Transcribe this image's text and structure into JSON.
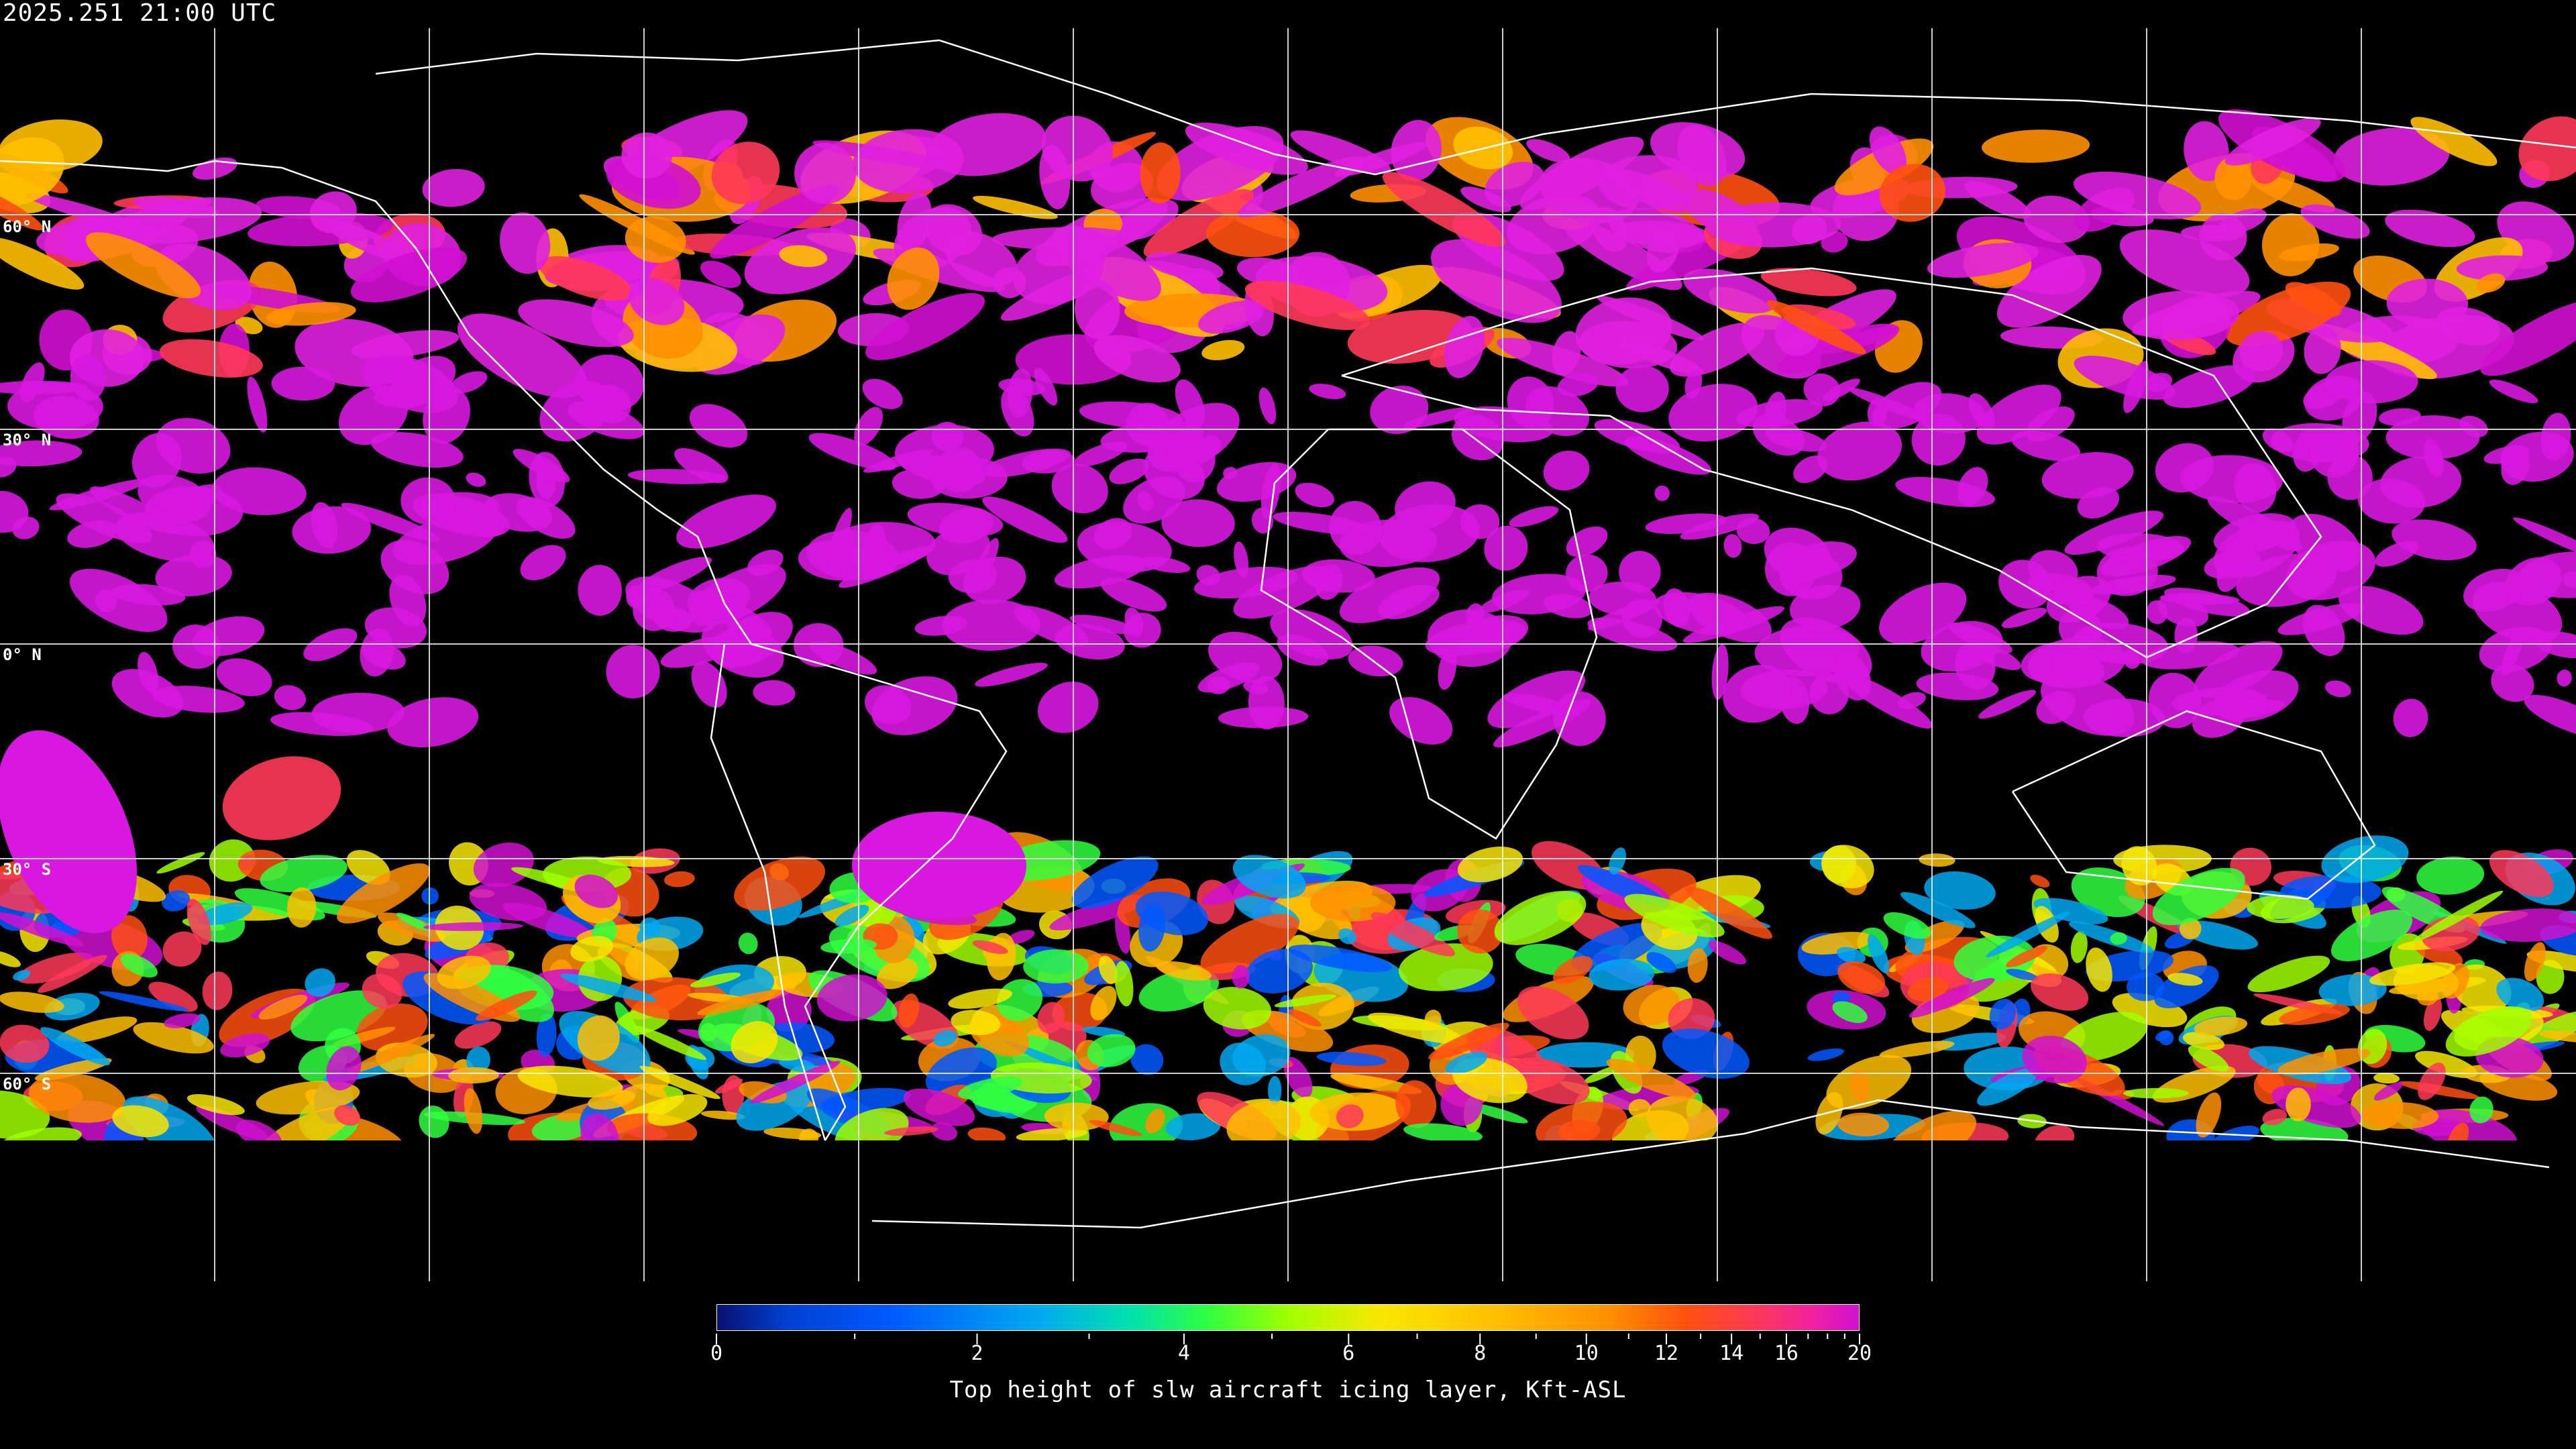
{
  "title": "2025.251 21:00 UTC",
  "map": {
    "projection": "equirectangular",
    "background": "#000000",
    "gridline_color": "#ffffff",
    "coastline_color": "#ffffff",
    "latitude_labels": [
      "60° N",
      "30° N",
      "0° N",
      "30° S",
      "60° S"
    ]
  },
  "colorbar": {
    "title": "Top height of slw aircraft icing layer, Kft-ASL",
    "tick_labels": [
      "0",
      "2",
      "4",
      "6",
      "8",
      "10",
      "12",
      "14",
      "16",
      "20"
    ],
    "range": [
      0,
      20
    ],
    "colors": [
      "#0a0f6e",
      "#0058ff",
      "#00a8f0",
      "#30ff40",
      "#a0ff00",
      "#f8e800",
      "#ffc000",
      "#ff9000",
      "#ff5010",
      "#ff3858",
      "#d010d0"
    ]
  }
}
